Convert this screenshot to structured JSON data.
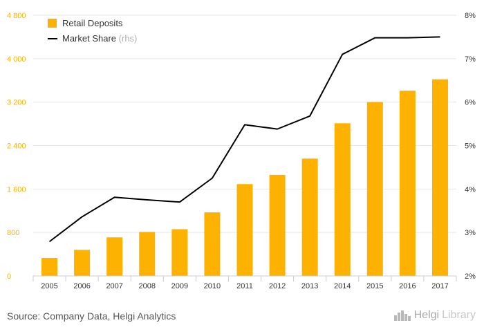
{
  "source_text": "Source: Company Data, Helgi Analytics",
  "logo": {
    "brand": "Helgi",
    "suffix": "Library",
    "icon": "city-skyline-icon"
  },
  "colors": {
    "bar": "#FDB100",
    "line": "#000000",
    "left_axis_text": "#FDB100",
    "right_axis_text": "#333333",
    "grid": "#e6e6e6"
  },
  "chart_data": {
    "type": "bar",
    "categories": [
      "2005",
      "2006",
      "2007",
      "2008",
      "2009",
      "2010",
      "2011",
      "2012",
      "2013",
      "2014",
      "2015",
      "2016",
      "2017"
    ],
    "series": [
      {
        "name": "Retail Deposits",
        "type": "bar",
        "axis": "left",
        "values": [
          330,
          480,
          710,
          810,
          860,
          1170,
          1690,
          1860,
          2160,
          2810,
          3200,
          3410,
          3620
        ]
      },
      {
        "name": "Market Share",
        "type": "line",
        "axis": "right",
        "values": [
          2.79,
          3.36,
          3.81,
          3.75,
          3.7,
          4.25,
          5.48,
          5.38,
          5.68,
          7.1,
          7.48,
          7.48,
          7.5
        ]
      }
    ],
    "legend": [
      {
        "label": "Retail Deposits",
        "suffix": ""
      },
      {
        "label": "Market Share",
        "suffix": "(rhs)"
      }
    ],
    "legend_position": "top-left",
    "y_left": {
      "ticks": [
        "0",
        "800",
        "1 600",
        "2 400",
        "3 200",
        "4 000",
        "4 800"
      ],
      "lim": [
        0,
        4800
      ]
    },
    "y_right": {
      "ticks": [
        "2%",
        "3%",
        "4%",
        "5%",
        "6%",
        "7%",
        "8%"
      ],
      "lim": [
        2,
        8
      ]
    },
    "grid": true
  }
}
